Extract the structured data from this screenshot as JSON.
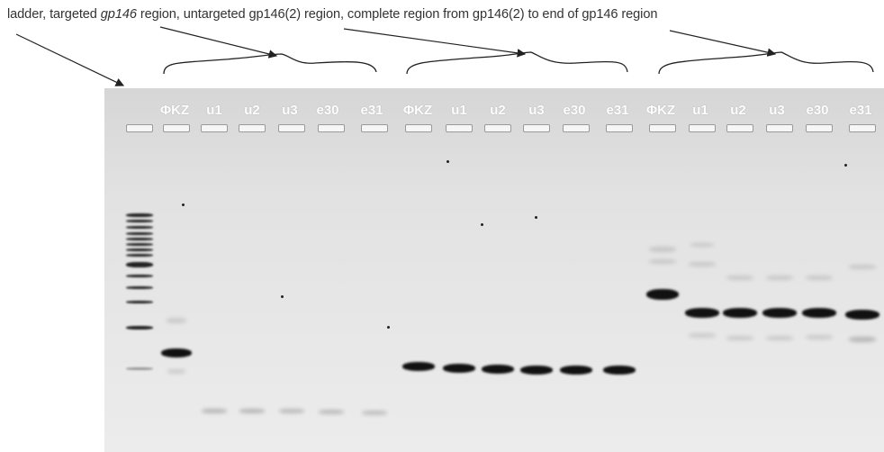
{
  "caption": {
    "ladder": "ladder, targeted ",
    "gp146_italic": "gp146",
    "rest": " region, untargeted gp146(2) region, complete region from gp146(2) to end of gp146 region"
  },
  "lanes": {
    "group1": [
      "ΦKZ",
      "u1",
      "u2",
      "u3",
      "e30",
      "e31"
    ],
    "group2": [
      "ΦKZ",
      "u1",
      "u2",
      "u3",
      "e30",
      "e31"
    ],
    "group3": [
      "ΦKZ",
      "u1",
      "u2",
      "u3",
      "e30",
      "e31"
    ]
  }
}
